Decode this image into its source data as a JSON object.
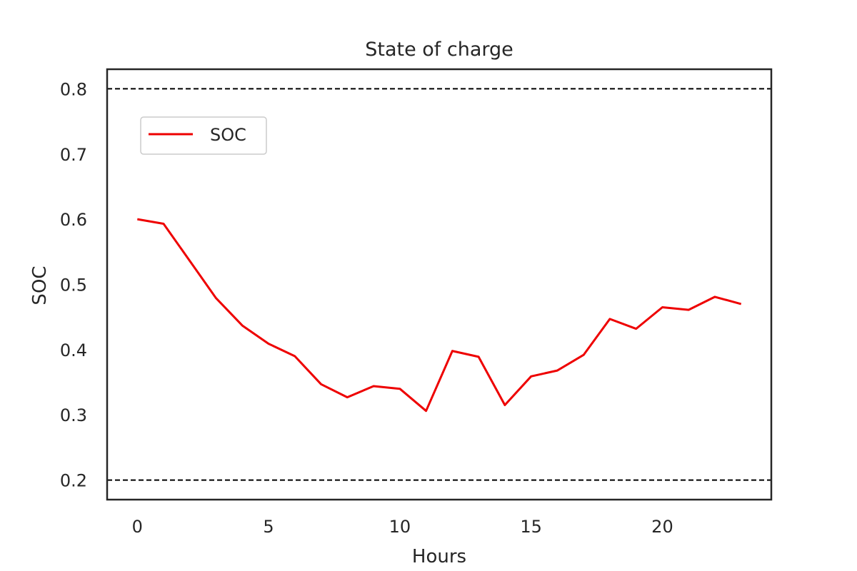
{
  "chart_data": {
    "type": "line",
    "title": "State of charge",
    "xlabel": "Hours",
    "ylabel": "SOC",
    "xlim": [
      -1.15,
      24.15
    ],
    "ylim": [
      0.17,
      0.83
    ],
    "xticks": [
      0,
      5,
      10,
      15,
      20
    ],
    "xtick_labels": [
      "0",
      "5",
      "10",
      "15",
      "20"
    ],
    "yticks": [
      0.2,
      0.3,
      0.4,
      0.5,
      0.6,
      0.7,
      0.8
    ],
    "ytick_labels": [
      "0.2",
      "0.3",
      "0.4",
      "0.5",
      "0.6",
      "0.7",
      "0.8"
    ],
    "grid": false,
    "legend_position": "upper-left",
    "x": [
      0,
      1,
      2,
      3,
      4,
      5,
      6,
      7,
      8,
      9,
      10,
      11,
      12,
      13,
      14,
      15,
      16,
      17,
      18,
      19,
      20,
      21,
      22,
      23
    ],
    "series": [
      {
        "name": "SOC",
        "color": "#ee0000",
        "values": [
          0.6,
          0.593,
          0.536,
          0.479,
          0.437,
          0.409,
          0.39,
          0.347,
          0.327,
          0.344,
          0.34,
          0.306,
          0.398,
          0.389,
          0.315,
          0.359,
          0.368,
          0.392,
          0.447,
          0.432,
          0.465,
          0.461,
          0.481,
          0.47
        ]
      }
    ],
    "hlines": [
      {
        "y": 0.8,
        "style": "dashed",
        "color": "#000000"
      },
      {
        "y": 0.2,
        "style": "dashed",
        "color": "#000000"
      }
    ]
  }
}
